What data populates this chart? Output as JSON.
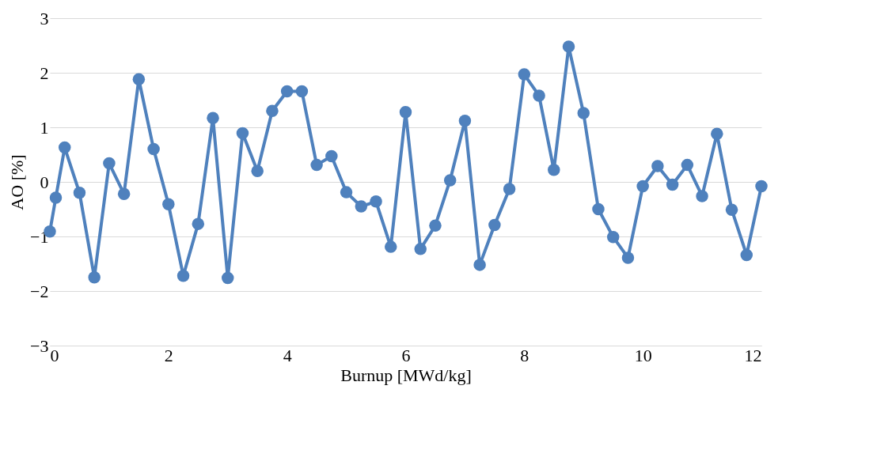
{
  "chart_data": {
    "type": "line",
    "xlabel": "Burnup [MWd/kg]",
    "ylabel": "AO [%]",
    "x": [
      0,
      0.1,
      0.25,
      0.5,
      0.75,
      1,
      1.25,
      1.5,
      1.75,
      2,
      2.25,
      2.5,
      2.75,
      3,
      3.25,
      3.5,
      3.75,
      4,
      4.25,
      4.5,
      4.75,
      5,
      5.25,
      5.5,
      5.75,
      6,
      6.25,
      6.5,
      6.75,
      7,
      7.25,
      7.5,
      7.75,
      8,
      8.25,
      8.5,
      8.75,
      9,
      9.25,
      9.5,
      9.75,
      10,
      10.25,
      10.5,
      10.75,
      11,
      11.25,
      11.5,
      11.75,
      12
    ],
    "series": [
      {
        "color": "#4f81bd",
        "values": [
          -0.91,
          -0.29,
          0.63,
          -0.2,
          -1.75,
          0.34,
          -0.22,
          1.88,
          0.6,
          -0.41,
          -1.72,
          -0.77,
          1.17,
          -1.76,
          0.89,
          0.2,
          1.3,
          1.66,
          1.66,
          0.31,
          0.47,
          -0.19,
          -0.45,
          -0.36,
          -1.19,
          1.28,
          -1.23,
          -0.8,
          0.03,
          1.12,
          -1.52,
          -0.79,
          -0.13,
          1.97,
          1.58,
          0.22,
          2.48,
          1.26,
          -0.5,
          -1.01,
          -1.39,
          -0.08,
          0.29,
          -0.05,
          0.31,
          -0.26,
          0.88,
          -0.51,
          -1.34,
          -0.08
        ]
      }
    ],
    "xlim": [
      0,
      12
    ],
    "xticks": [
      0,
      2,
      4,
      6,
      8,
      10,
      12
    ],
    "ylim": [
      -3,
      3
    ],
    "yticks": [
      -3,
      -2,
      -1,
      0,
      1,
      2,
      3
    ],
    "grid": "y",
    "marker": "circle",
    "line_style": "solid"
  }
}
